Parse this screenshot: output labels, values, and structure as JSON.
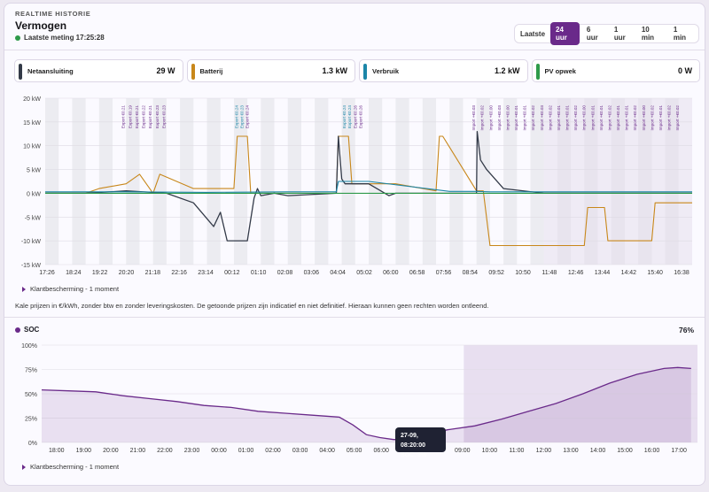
{
  "header": {
    "overline": "REALTIME HISTORIE",
    "title": "Vermogen",
    "status": "Laatste meting 17:25:28"
  },
  "range": {
    "label": "Laatste",
    "options": [
      "24 uur",
      "6 uur",
      "1 uur",
      "10 min",
      "1 min"
    ],
    "active": "24 uur"
  },
  "cards": [
    {
      "name": "Netaansluiting",
      "value": "29 W",
      "color": "#333a48"
    },
    {
      "name": "Batterij",
      "value": "1.3 kW",
      "color": "#c8871a"
    },
    {
      "name": "Verbruik",
      "value": "1.2 kW",
      "color": "#1b86a8"
    },
    {
      "name": "PV opwek",
      "value": "0 W",
      "color": "#2e9a4a"
    }
  ],
  "colors": {
    "grid": "#333a48",
    "battery": "#c8871a",
    "consumption": "#1b86a8",
    "pv": "#2e9a4a",
    "accent": "#6a2a8a"
  },
  "notes": {
    "protection1": "Klantbescherming - 1 moment",
    "disclaimer": "Kale prijzen in €/kWh, zonder btw en zonder leveringskosten. De getoonde prijzen zijn indicatief en niet definitief. Hieraan kunnen geen rechten worden ontleend.",
    "protection2": "Klantbescherming - 1 moment"
  },
  "soc": {
    "label": "SOC",
    "value": "76%",
    "tooltip_time": "27-09, 08:20:00",
    "tooltip_value": "SOC: 3%"
  },
  "chart_data": [
    {
      "type": "line",
      "y_ticks": [
        "20 kW",
        "15 kW",
        "10 kW",
        "5 kW",
        "0 kW",
        "-5 kW",
        "-10 kW",
        "-15 kW"
      ],
      "ylim": [
        -15,
        20
      ],
      "x_ticks": [
        "17:26",
        "18:24",
        "19:22",
        "20:20",
        "21:18",
        "22:16",
        "23:14",
        "00:12",
        "01:10",
        "02:08",
        "03:06",
        "04:04",
        "05:02",
        "06:00",
        "06:58",
        "07:56",
        "08:54",
        "09:52",
        "10:50",
        "11:48",
        "12:46",
        "13:44",
        "14:42",
        "15:40",
        "16:38"
      ],
      "export_labels": [
        "Export €0.21",
        "Export €0.19",
        "Export €0.21",
        "Export €0.22",
        "Export €0.21",
        "Export €0.23",
        "Export €0.23",
        "Export €0.24",
        "Export €0.23",
        "Export €0.24",
        "Export €0.24",
        "Export €0.24",
        "Export €0.26",
        "Export €0.26"
      ],
      "import_labels": [
        "Import +€0.03",
        "Import +€0.02",
        "Import +€0.00",
        "Import +€0.03",
        "Import +€0.00",
        "Import +€0.01",
        "Import +€0.01",
        "Import +€0.02",
        "Import +€0.03",
        "Import +€0.02",
        "Import +€0.01",
        "Import +€0.01",
        "Import +€0.02",
        "Import +€0.00",
        "Import +€0.01",
        "Import +€0.01",
        "Import +€0.02",
        "Import +€0.01",
        "Import +€0.01",
        "Import +€0.02",
        "Import +€0.00",
        "Import +€0.02",
        "Import +€0.01",
        "Import +€0.02",
        "Import +€0.02"
      ],
      "series": [
        {
          "name": "Netaansluiting",
          "x": [
            0,
            6,
            12,
            18,
            22,
            25,
            26,
            27,
            30,
            31,
            31.5,
            32,
            34,
            36,
            43.2,
            43.5,
            44,
            44.5,
            48,
            51,
            52,
            55,
            61,
            64,
            64.1,
            64.6,
            65.5,
            68,
            74,
            80,
            84,
            89,
            93,
            96
          ],
          "y": [
            0,
            0,
            0.5,
            0,
            -2,
            -7,
            -4,
            -10,
            -10,
            -1,
            1,
            -0.5,
            0,
            -0.5,
            0,
            12,
            3,
            2,
            2,
            -0.5,
            0,
            0,
            0,
            0,
            13,
            7,
            5,
            1,
            0,
            0,
            0,
            0,
            0,
            0
          ]
        },
        {
          "name": "Batterij",
          "x": [
            0,
            6,
            8,
            12,
            14,
            16,
            17,
            22,
            26,
            28,
            28.5,
            30,
            30.5,
            32,
            43.2,
            43.5,
            45,
            45.5,
            48,
            51.5,
            52,
            58,
            58.5,
            59,
            64,
            65,
            66,
            80,
            80.5,
            83,
            83.5,
            90,
            90.5,
            96
          ],
          "y": [
            0,
            0,
            1,
            2,
            4,
            0,
            4,
            1,
            1,
            1,
            12,
            12,
            0,
            0,
            0,
            12,
            12,
            2,
            2,
            2,
            2,
            0.5,
            12,
            12,
            0.5,
            0.5,
            -11,
            -11,
            -3,
            -3,
            -10,
            -10,
            -2,
            -2
          ]
        },
        {
          "name": "Verbruik",
          "x": [
            0,
            12,
            24,
            36,
            43.2,
            43.5,
            48,
            60,
            64,
            66,
            75,
            85,
            96
          ],
          "y": [
            0.3,
            0.3,
            0.2,
            0.3,
            0.3,
            2.5,
            2.5,
            0.4,
            0.4,
            0.3,
            0.3,
            0.3,
            0.3
          ]
        },
        {
          "name": "PV opwek",
          "x": [
            0,
            96
          ],
          "y": [
            0,
            0
          ]
        }
      ]
    },
    {
      "type": "area",
      "y_ticks": [
        "100%",
        "75%",
        "50%",
        "25%",
        "0%"
      ],
      "ylim": [
        0,
        100
      ],
      "x_ticks": [
        "18:00",
        "19:00",
        "20:00",
        "21:00",
        "22:00",
        "23:00",
        "00:00",
        "01:00",
        "02:00",
        "03:00",
        "04:00",
        "05:00",
        "06:00",
        "07:00",
        "08:00",
        "09:00",
        "10:00",
        "11:00",
        "12:00",
        "13:00",
        "14:00",
        "15:00",
        "16:00",
        "17:00"
      ],
      "series": [
        {
          "name": "SOC",
          "x": [
            0,
            1,
            2,
            3,
            4,
            5,
            6,
            7,
            8,
            9,
            10,
            11,
            11.5,
            12,
            12.5,
            13,
            14,
            14.5,
            15,
            16,
            17,
            18,
            19,
            20,
            21,
            22,
            23,
            23.5,
            24
          ],
          "y": [
            54,
            53,
            52,
            48,
            45,
            42,
            38,
            36,
            32,
            30,
            28,
            26,
            18,
            8,
            5,
            3,
            3,
            10,
            13,
            17,
            24,
            32,
            40,
            50,
            61,
            70,
            76,
            77,
            76
          ]
        }
      ]
    }
  ]
}
